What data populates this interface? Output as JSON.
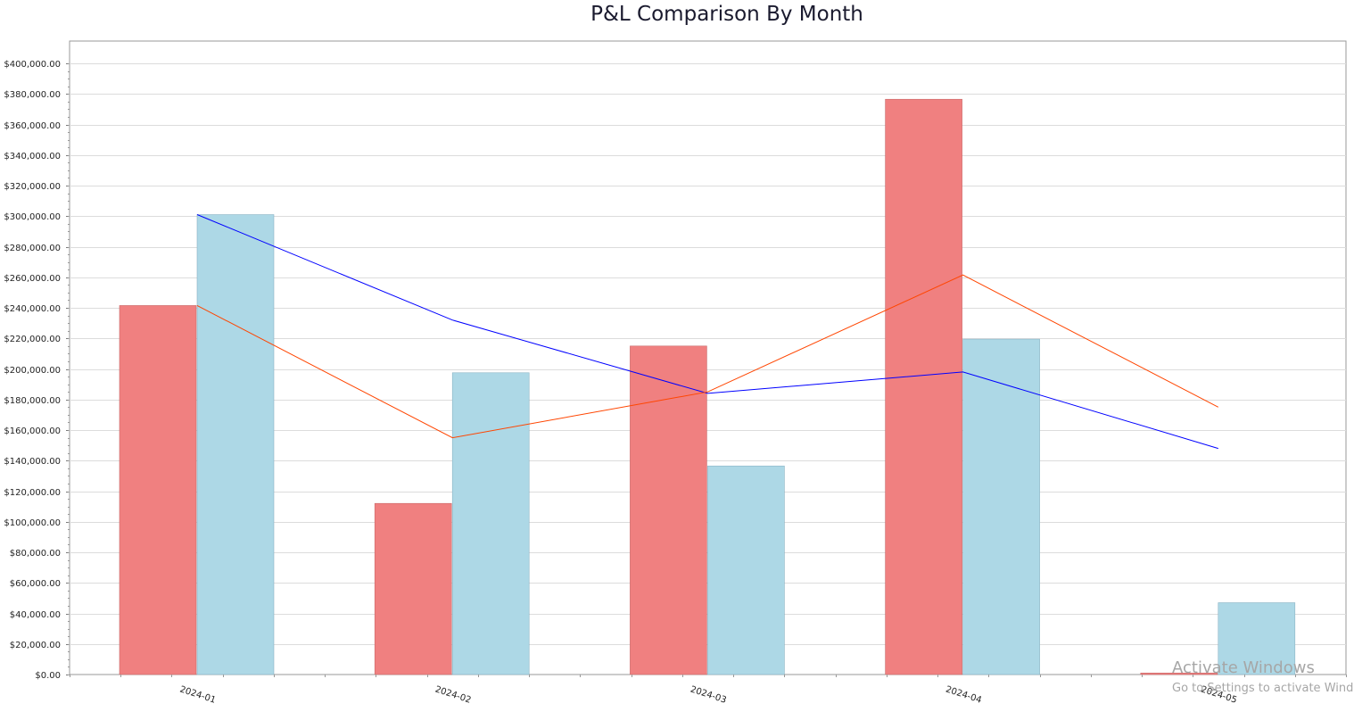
{
  "chart_data": {
    "type": "bar",
    "title": "P&L Comparison By Month",
    "categories": [
      "2024-01",
      "2024-02",
      "2024-03",
      "2024-04",
      "2024-05"
    ],
    "series": [
      {
        "type": "bar",
        "color": "#f08080",
        "values": [
          241500,
          112000,
          215000,
          376500,
          1000
        ]
      },
      {
        "type": "bar",
        "color": "#add8e6",
        "values": [
          301000,
          197500,
          136500,
          219500,
          47000
        ]
      },
      {
        "type": "line",
        "color": "#0000ff",
        "values": [
          301000,
          232000,
          184000,
          198000,
          148000
        ]
      },
      {
        "type": "line",
        "color": "#ff4500",
        "values": [
          241500,
          155000,
          185000,
          261500,
          175000
        ]
      }
    ],
    "ylim": [
      0,
      400000
    ],
    "y_ticks": [
      0,
      20000,
      40000,
      60000,
      80000,
      100000,
      120000,
      140000,
      160000,
      180000,
      200000,
      220000,
      240000,
      260000,
      280000,
      300000,
      320000,
      340000,
      360000,
      380000,
      400000
    ],
    "y_tick_format": "currency-2dp",
    "grid": true,
    "legend": "none"
  },
  "watermark": {
    "title": "Activate Windows",
    "subtitle": "Go to Settings to activate Windows."
  }
}
